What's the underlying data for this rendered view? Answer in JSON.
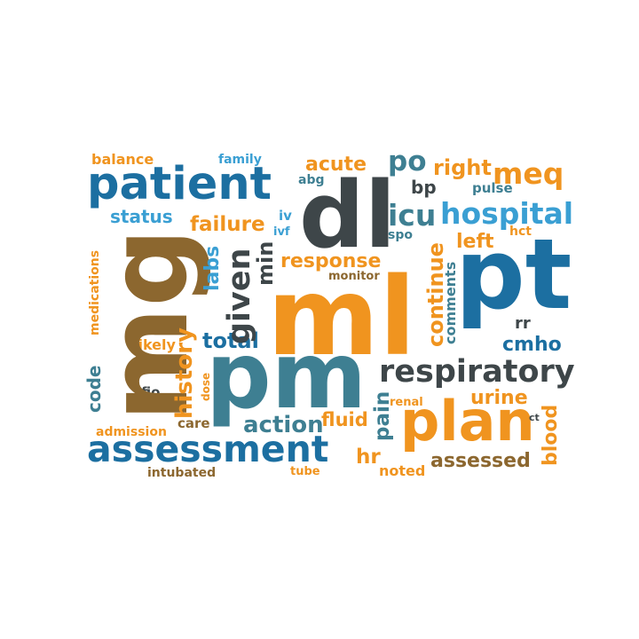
{
  "words": {
    "ml": "ml",
    "dl": "dl",
    "mg": "mg",
    "pt": "pt",
    "pm": "pm",
    "plan": "plan",
    "patient": "patient",
    "assessment": "assessment",
    "respiratory": "respiratory",
    "hospital": "hospital",
    "icu": "icu",
    "meq": "meq",
    "right": "right",
    "po": "po",
    "acute": "acute",
    "abg": "abg",
    "bp": "bp",
    "pulse": "pulse",
    "status": "status",
    "failure": "failure",
    "iv": "iv",
    "ivf": "ivf",
    "spo": "spo",
    "hct": "hct",
    "left": "left",
    "response": "response",
    "monitor": "monitor",
    "min": "min",
    "given": "given",
    "labs": "labs",
    "history": "history",
    "medications": "medications",
    "continue": "continue",
    "comments": "comments",
    "rr": "rr",
    "cmho": "cmho",
    "total": "total",
    "likely": "likely",
    "fio": "fio",
    "dose": "dose",
    "code": "code",
    "urine": "urine",
    "renal": "renal",
    "pain": "pain",
    "fluid": "fluid",
    "action": "action",
    "care": "care",
    "admission": "admission",
    "blood": "blood",
    "ct": "ct",
    "hr": "hr",
    "assessed": "assessed",
    "noted": "noted",
    "tube": "tube",
    "intubated": "intubated",
    "balance": "balance",
    "family": "family"
  },
  "colors": {
    "orange": "#f0941f",
    "blue": "#1c6fa1",
    "teal": "#3e7f92",
    "dark": "#3e4649",
    "brown": "#8c672f",
    "light": "#3a9fd3"
  }
}
